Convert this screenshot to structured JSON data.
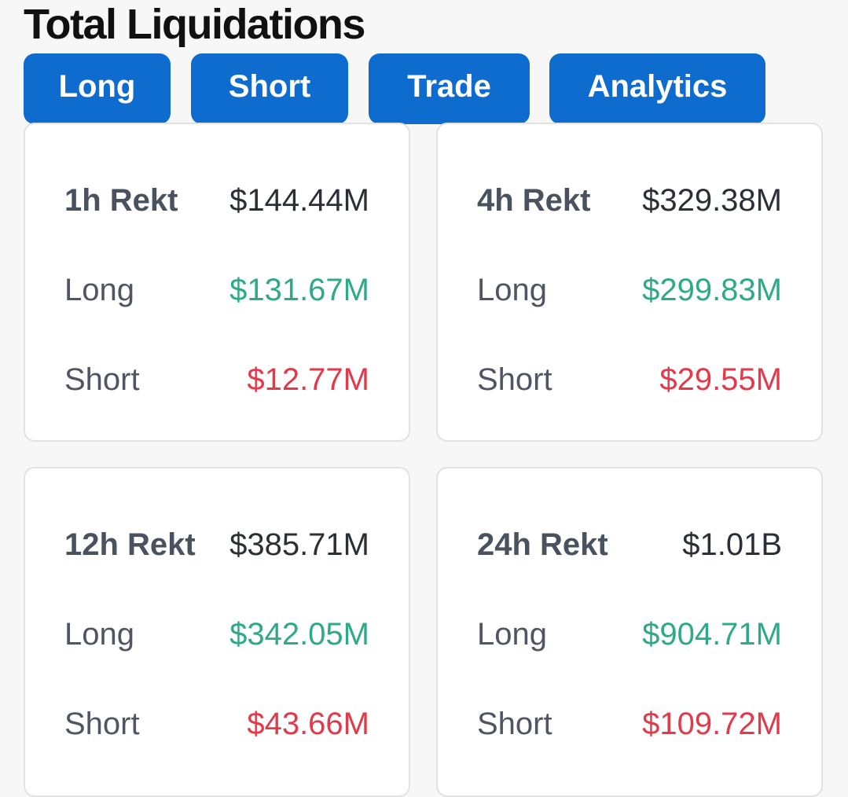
{
  "title": "Total Liquidations",
  "tabs": {
    "long": "Long",
    "short": "Short",
    "trade": "Trade",
    "analytics": "Analytics"
  },
  "colors": {
    "tab_bg": "#0f6ccf",
    "long": "#2ea98a",
    "short": "#e23a4a"
  },
  "cards": [
    {
      "period_label": "1h Rekt",
      "total": "$144.44M",
      "long_label": "Long",
      "long_value": "$131.67M",
      "short_label": "Short",
      "short_value": "$12.77M"
    },
    {
      "period_label": "4h Rekt",
      "total": "$329.38M",
      "long_label": "Long",
      "long_value": "$299.83M",
      "short_label": "Short",
      "short_value": "$29.55M"
    },
    {
      "period_label": "12h Rekt",
      "total": "$385.71M",
      "long_label": "Long",
      "long_value": "$342.05M",
      "short_label": "Short",
      "short_value": "$43.66M"
    },
    {
      "period_label": "24h Rekt",
      "total": "$1.01B",
      "long_label": "Long",
      "long_value": "$904.71M",
      "short_label": "Short",
      "short_value": "$109.72M"
    }
  ]
}
